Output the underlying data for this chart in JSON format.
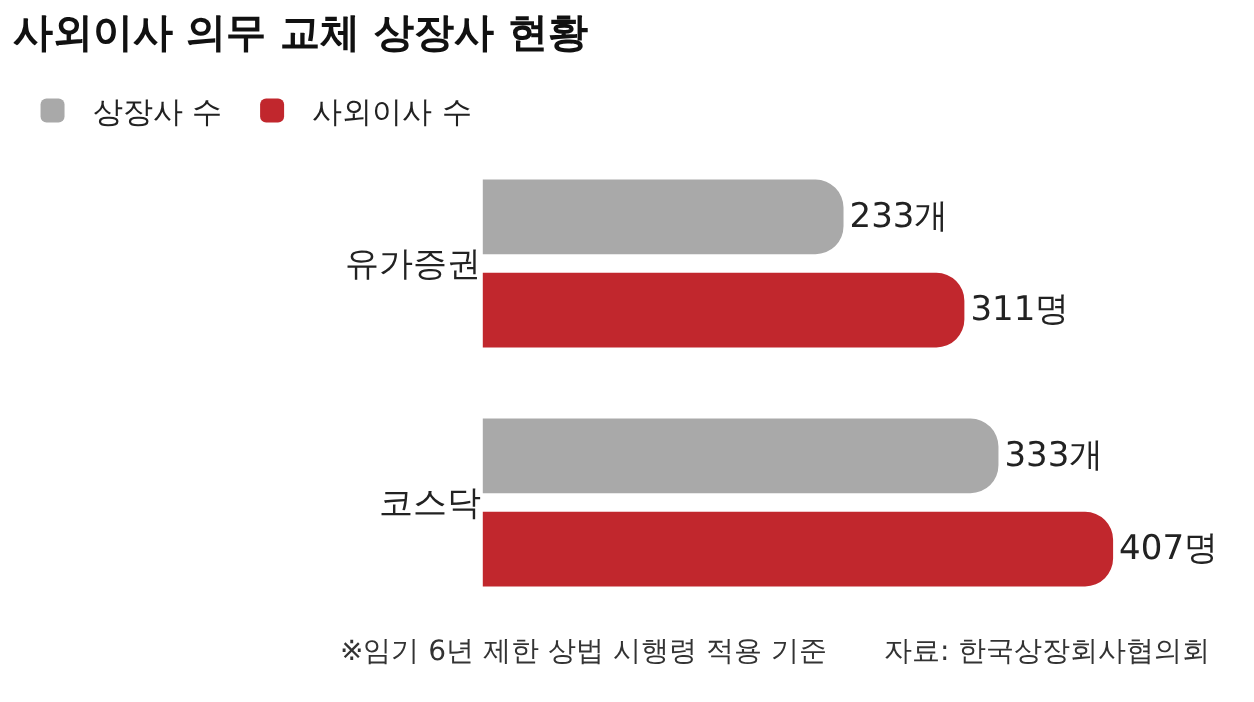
{
  "chart_data": {
    "type": "bar",
    "orientation": "horizontal",
    "title": "사외이사 의무 교체 상장사 현황",
    "categories": [
      "유가증권",
      "코스닥"
    ],
    "series": [
      {
        "name": "상장사 수",
        "color": "#a9a9a9",
        "values": [
          233,
          333
        ],
        "value_labels": [
          "233개",
          "333개"
        ]
      },
      {
        "name": "사외이사 수",
        "color": "#c1272d",
        "values": [
          311,
          407
        ],
        "value_labels": [
          "311명",
          "407명"
        ]
      }
    ],
    "legend": "top left",
    "grid": false,
    "tick_labels": "y",
    "annotations": [
      "※임기 6년 제한 상법 시행령 적용 기준",
      "자료: 한국상장회사협의회"
    ]
  }
}
